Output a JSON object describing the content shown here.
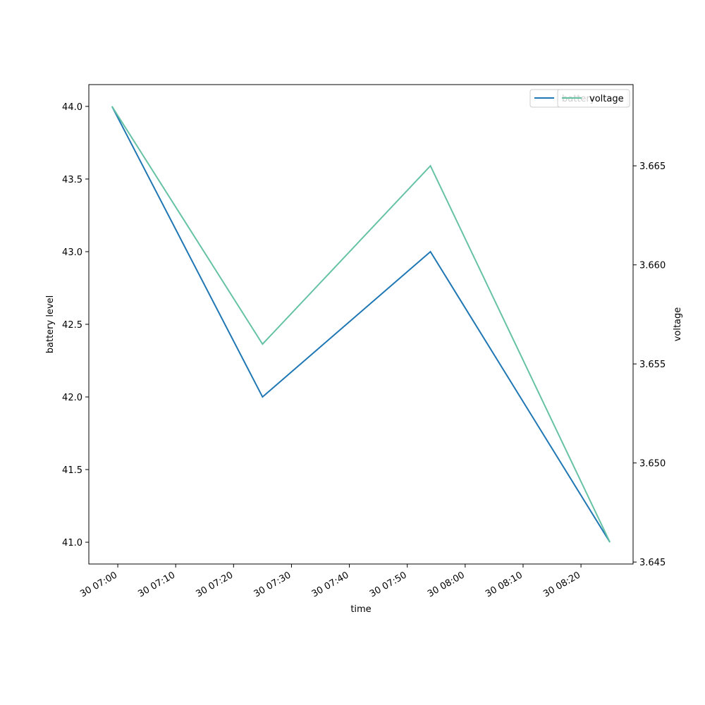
{
  "chart_data": {
    "type": "line",
    "xlabel": "time",
    "ylabel": "battery level",
    "y2label": "voltage",
    "x": [
      "30 06:59",
      "30 07:25",
      "30 07:54",
      "30 08:25"
    ],
    "xlim": [
      "30 06:55",
      "30 08:29"
    ],
    "xticks": [
      "30 07:00",
      "30 07:10",
      "30 07:20",
      "30 07:30",
      "30 07:40",
      "30 07:50",
      "30 08:00",
      "30 08:10",
      "30 08:20"
    ],
    "ylim": [
      40.85,
      44.15
    ],
    "yticks": [
      {
        "value": 41,
        "label": "41.0"
      },
      41.5,
      {
        "value": 42,
        "label": "42.0"
      },
      42.5,
      {
        "value": 43,
        "label": "43.0"
      },
      43.5,
      {
        "value": 44,
        "label": "44.0"
      }
    ],
    "y2lim": [
      3.6449,
      3.6691
    ],
    "y2ticks": [
      3.645,
      {
        "value": 3.65,
        "label": "3.650"
      },
      3.655,
      {
        "value": 3.66,
        "label": "3.660"
      },
      3.665
    ],
    "series": [
      {
        "name": "battery",
        "color": "#1f77b4",
        "values": [
          44,
          42,
          43,
          41
        ]
      },
      {
        "name": "voltage",
        "color": "#66c2a5",
        "values": [
          3.668,
          3.656,
          3.665,
          3.646
        ],
        "axis": "y2"
      }
    ]
  }
}
